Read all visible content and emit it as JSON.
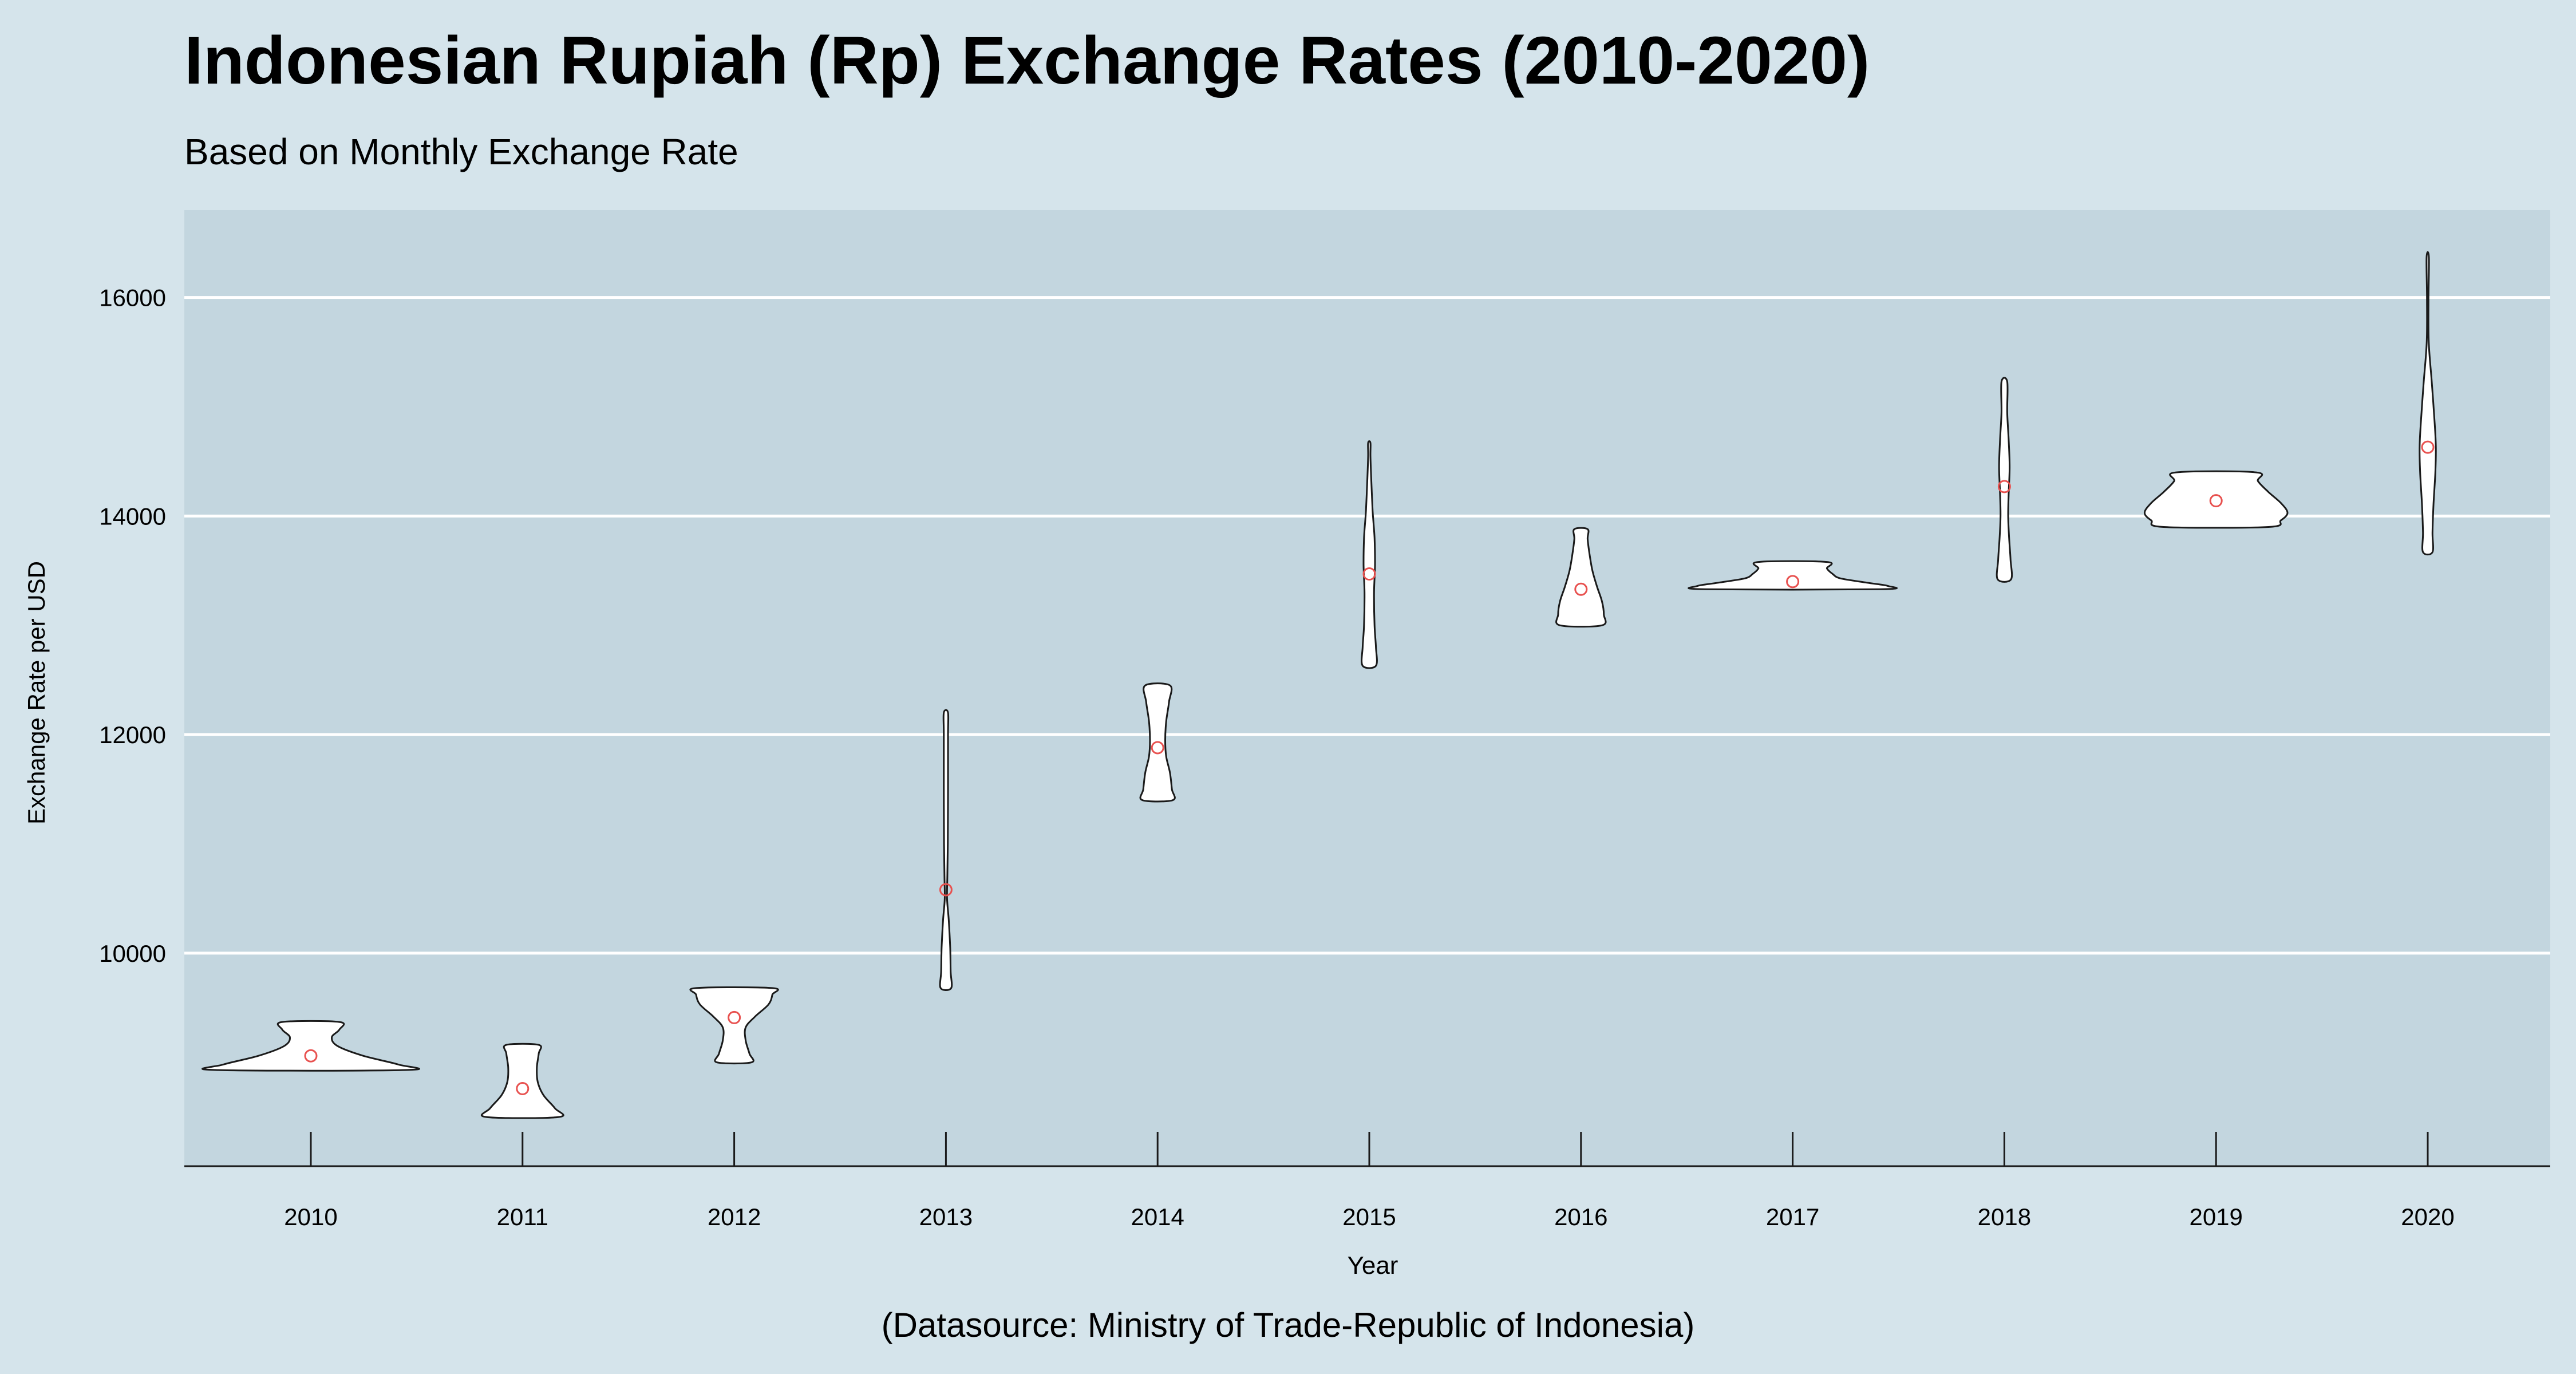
{
  "title": "Indonesian Rupiah (Rp) Exchange Rates (2010-2020)",
  "subtitle": "Based on Monthly Exchange Rate",
  "caption": "(Datasource: Ministry of Trade-Republic of Indonesia)",
  "colors": {
    "page_background": "#d5e4eb",
    "panel_background": "#c3d6df",
    "gridline": "#ffffff",
    "violin_fill": "#ffffff",
    "violin_stroke": "#1a1a1a",
    "mean_marker": "#e8514f"
  },
  "chart_data": {
    "type": "violin",
    "xlabel": "Year",
    "ylabel": "Exchange Rate per USD",
    "categories": [
      "2010",
      "2011",
      "2012",
      "2013",
      "2014",
      "2015",
      "2016",
      "2017",
      "2018",
      "2019",
      "2020"
    ],
    "yticks": [
      10000,
      12000,
      14000,
      16000
    ],
    "ylim": [
      8050,
      16800
    ],
    "grid": true,
    "legend": "none",
    "marker": "mean (red circle)",
    "series": [
      {
        "category": "2010",
        "min": 8930,
        "max": 9370,
        "mean": 9060,
        "profile": [
          [
            8930,
            1.0
          ],
          [
            8980,
            0.92
          ],
          [
            9060,
            0.55
          ],
          [
            9150,
            0.28
          ],
          [
            9230,
            0.22
          ],
          [
            9300,
            0.3
          ],
          [
            9370,
            0.3
          ]
        ]
      },
      {
        "category": "2011",
        "min": 8500,
        "max": 9160,
        "mean": 8760,
        "profile": [
          [
            8500,
            0.38
          ],
          [
            8580,
            0.34
          ],
          [
            8700,
            0.22
          ],
          [
            8820,
            0.16
          ],
          [
            8950,
            0.15
          ],
          [
            9080,
            0.17
          ],
          [
            9160,
            0.17
          ]
        ]
      },
      {
        "category": "2012",
        "min": 9000,
        "max": 9680,
        "mean": 9410,
        "profile": [
          [
            9000,
            0.18
          ],
          [
            9080,
            0.16
          ],
          [
            9200,
            0.12
          ],
          [
            9320,
            0.12
          ],
          [
            9420,
            0.22
          ],
          [
            9530,
            0.36
          ],
          [
            9620,
            0.4
          ],
          [
            9680,
            0.4
          ]
        ]
      },
      {
        "category": "2013",
        "min": 9680,
        "max": 12200,
        "mean": 10580,
        "profile": [
          [
            9680,
            0.055
          ],
          [
            9830,
            0.05
          ],
          [
            10050,
            0.045
          ],
          [
            10300,
            0.03
          ],
          [
            10500,
            0.012
          ],
          [
            10700,
            0.015
          ],
          [
            11000,
            0.02
          ],
          [
            11500,
            0.022
          ],
          [
            12000,
            0.022
          ],
          [
            12200,
            0.022
          ]
        ]
      },
      {
        "category": "2014",
        "min": 11400,
        "max": 12450,
        "mean": 11880,
        "profile": [
          [
            11400,
            0.16
          ],
          [
            11500,
            0.15
          ],
          [
            11650,
            0.13
          ],
          [
            11800,
            0.09
          ],
          [
            11950,
            0.08
          ],
          [
            12120,
            0.09
          ],
          [
            12300,
            0.12
          ],
          [
            12450,
            0.13
          ]
        ]
      },
      {
        "category": "2015",
        "min": 12630,
        "max": 14670,
        "mean": 13470,
        "profile": [
          [
            12630,
            0.07
          ],
          [
            12800,
            0.07
          ],
          [
            13000,
            0.055
          ],
          [
            13300,
            0.05
          ],
          [
            13550,
            0.06
          ],
          [
            13800,
            0.055
          ],
          [
            14050,
            0.035
          ],
          [
            14350,
            0.02
          ],
          [
            14550,
            0.012
          ],
          [
            14670,
            0.012
          ]
        ]
      },
      {
        "category": "2016",
        "min": 13000,
        "max": 13880,
        "mean": 13330,
        "profile": [
          [
            13000,
            0.22
          ],
          [
            13100,
            0.24
          ],
          [
            13220,
            0.22
          ],
          [
            13350,
            0.17
          ],
          [
            13500,
            0.12
          ],
          [
            13650,
            0.09
          ],
          [
            13790,
            0.07
          ],
          [
            13880,
            0.07
          ]
        ]
      },
      {
        "category": "2017",
        "min": 13330,
        "max": 13580,
        "mean": 13400,
        "profile": [
          [
            13330,
            0.92
          ],
          [
            13360,
            1.0
          ],
          [
            13390,
            0.78
          ],
          [
            13430,
            0.5
          ],
          [
            13470,
            0.42
          ],
          [
            13520,
            0.36
          ],
          [
            13580,
            0.36
          ]
        ]
      },
      {
        "category": "2018",
        "min": 13420,
        "max": 15230,
        "mean": 14270,
        "profile": [
          [
            13420,
            0.07
          ],
          [
            13600,
            0.065
          ],
          [
            13800,
            0.05
          ],
          [
            14000,
            0.04
          ],
          [
            14200,
            0.045
          ],
          [
            14450,
            0.055
          ],
          [
            14700,
            0.045
          ],
          [
            14950,
            0.03
          ],
          [
            15230,
            0.03
          ]
        ]
      },
      {
        "category": "2019",
        "min": 13900,
        "max": 14400,
        "mean": 14140,
        "profile": [
          [
            13900,
            0.55
          ],
          [
            13960,
            0.68
          ],
          [
            14030,
            0.75
          ],
          [
            14120,
            0.68
          ],
          [
            14220,
            0.55
          ],
          [
            14320,
            0.44
          ],
          [
            14400,
            0.42
          ]
        ]
      },
      {
        "category": "2020",
        "min": 13670,
        "max": 16370,
        "mean": 14630,
        "profile": [
          [
            13670,
            0.05
          ],
          [
            13850,
            0.05
          ],
          [
            14100,
            0.06
          ],
          [
            14400,
            0.08
          ],
          [
            14650,
            0.085
          ],
          [
            14950,
            0.065
          ],
          [
            15250,
            0.04
          ],
          [
            15600,
            0.01
          ],
          [
            16000,
            0.008
          ],
          [
            16370,
            0.012
          ]
        ]
      }
    ]
  }
}
